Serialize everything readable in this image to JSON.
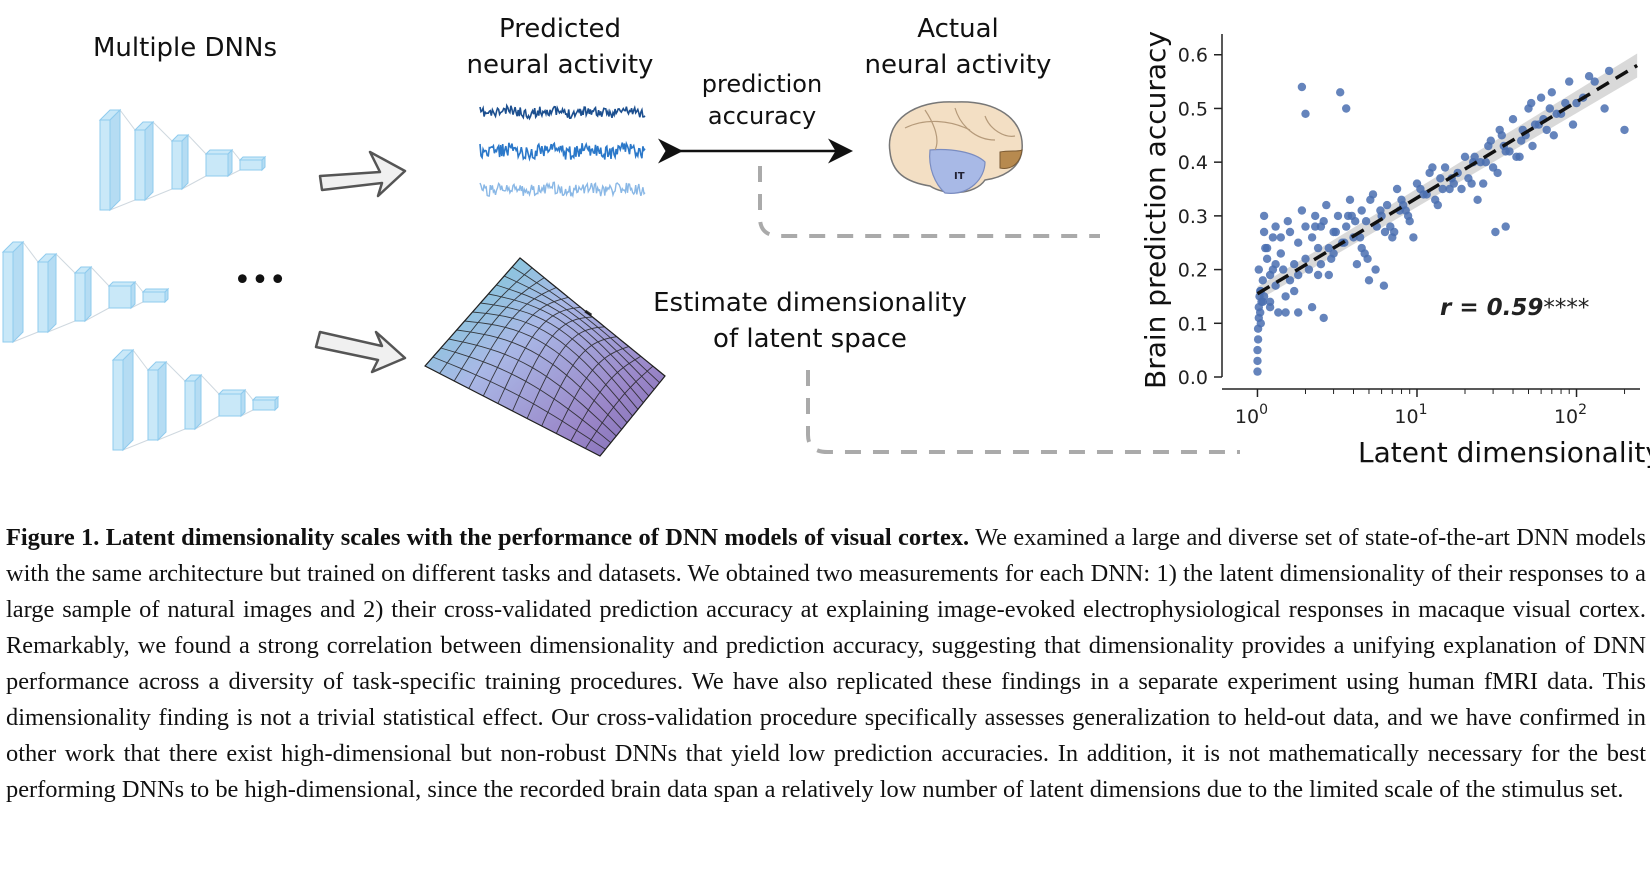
{
  "figure": {
    "dnn_label": "Multiple DNNs",
    "ellipsis": "•••",
    "predicted_label_line1": "Predicted",
    "predicted_label_line2": "neural activity",
    "accuracy_label_line1": "prediction",
    "accuracy_label_line2": "accuracy",
    "actual_label_line1": "Actual",
    "actual_label_line2": "neural activity",
    "brain_region_label": "IT",
    "dimensionality_label_line1": "Estimate dimensionality",
    "dimensionality_label_line2": "of latent space",
    "colors": {
      "dnn_fill": "#c9e8f8",
      "dnn_stroke": "#8fcbee",
      "trace_dark": "#1c4f8f",
      "trace_mid": "#2b78c9",
      "trace_light": "#8ab8e6",
      "scatter": "#4a6fb0",
      "arrow_fill": "#f0f0f0",
      "arrow_stroke": "#555555",
      "dash": "#aaaaaa"
    }
  },
  "chart_data": {
    "type": "scatter",
    "xlabel": "Latent dimensionality",
    "ylabel": "Brain prediction accuracy",
    "xscale": "log",
    "xlim": [
      0.8,
      250
    ],
    "ylim": [
      0.0,
      0.62
    ],
    "yticks": [
      "0.0",
      "0.1",
      "0.2",
      "0.3",
      "0.4",
      "0.5",
      "0.6"
    ],
    "xticks": [
      {
        "base": "10",
        "exp": "0"
      },
      {
        "base": "10",
        "exp": "1"
      },
      {
        "base": "10",
        "exp": "2"
      }
    ],
    "annotation_r": "r = 0.59",
    "annotation_sig": "****",
    "fit_line": {
      "x": [
        1.0,
        240
      ],
      "y": [
        0.155,
        0.58
      ]
    },
    "points": {
      "x": [
        1.0,
        1.0,
        1.0,
        1.01,
        1.01,
        1.02,
        1.02,
        1.03,
        1.04,
        1.05,
        1.05,
        1.06,
        1.08,
        1.1,
        1.1,
        1.12,
        1.15,
        1.2,
        1.2,
        1.25,
        1.3,
        1.3,
        1.35,
        1.4,
        1.45,
        1.5,
        1.55,
        1.6,
        1.7,
        1.8,
        1.8,
        1.9,
        2.0,
        2.0,
        2.1,
        2.2,
        2.3,
        2.4,
        2.5,
        2.6,
        2.7,
        2.8,
        3.0,
        3.0,
        3.2,
        3.4,
        3.6,
        3.8,
        4.0,
        4.2,
        4.5,
        4.8,
        5.0,
        5.3,
        5.6,
        6.0,
        6.5,
        7.0,
        7.5,
        8.0,
        8.5,
        9.0,
        10,
        11,
        12,
        13,
        14,
        15,
        16,
        18,
        20,
        22,
        25,
        28,
        30,
        33,
        36,
        40,
        45,
        50,
        55,
        60,
        70,
        80,
        90,
        100,
        120,
        150,
        1.9,
        2.0,
        3.3,
        3.6,
        2.2,
        2.6,
        1.1,
        1.2,
        1.5,
        1.7,
        4.5,
        5.5,
        6.2,
        2.4,
        2.9,
        3.1,
        3.5,
        4.1,
        4.7,
        5.9,
        7.2,
        8.8,
        9.5,
        11.5,
        13.5,
        17,
        19,
        21,
        24,
        27,
        32,
        38,
        42,
        48,
        53,
        58,
        65,
        75,
        85,
        95,
        110,
        130,
        160,
        200,
        1.3,
        1.6,
        2.3,
        2.8,
        3.9,
        4.4,
        5.1,
        6.8,
        7.8,
        12.5,
        14.5,
        22.5,
        26,
        29,
        35,
        44,
        52,
        62,
        72,
        31,
        36,
        1.02,
        1.04,
        1.08,
        1.15,
        1.25,
        1.4,
        1.8,
        2.5,
        3.7,
        4.9,
        6.3,
        8.2,
        10.5,
        16.5,
        23,
        34,
        46,
        68
      ],
      "y": [
        0.01,
        0.03,
        0.05,
        0.07,
        0.09,
        0.11,
        0.13,
        0.15,
        0.12,
        0.1,
        0.16,
        0.14,
        0.18,
        0.27,
        0.3,
        0.24,
        0.22,
        0.19,
        0.13,
        0.26,
        0.28,
        0.17,
        0.12,
        0.23,
        0.2,
        0.15,
        0.29,
        0.27,
        0.21,
        0.25,
        0.12,
        0.31,
        0.28,
        0.22,
        0.2,
        0.26,
        0.3,
        0.24,
        0.21,
        0.29,
        0.32,
        0.19,
        0.27,
        0.23,
        0.3,
        0.25,
        0.28,
        0.33,
        0.26,
        0.21,
        0.31,
        0.29,
        0.18,
        0.34,
        0.28,
        0.3,
        0.32,
        0.26,
        0.35,
        0.33,
        0.31,
        0.29,
        0.36,
        0.34,
        0.38,
        0.33,
        0.37,
        0.39,
        0.35,
        0.38,
        0.41,
        0.36,
        0.4,
        0.43,
        0.39,
        0.46,
        0.42,
        0.48,
        0.44,
        0.5,
        0.47,
        0.52,
        0.53,
        0.49,
        0.55,
        0.51,
        0.56,
        0.5,
        0.54,
        0.49,
        0.53,
        0.5,
        0.13,
        0.11,
        0.15,
        0.14,
        0.12,
        0.16,
        0.24,
        0.2,
        0.17,
        0.19,
        0.22,
        0.27,
        0.25,
        0.29,
        0.23,
        0.31,
        0.27,
        0.3,
        0.26,
        0.34,
        0.32,
        0.36,
        0.35,
        0.37,
        0.33,
        0.4,
        0.38,
        0.42,
        0.41,
        0.45,
        0.43,
        0.47,
        0.46,
        0.49,
        0.51,
        0.47,
        0.52,
        0.55,
        0.57,
        0.46,
        0.21,
        0.18,
        0.28,
        0.24,
        0.3,
        0.26,
        0.33,
        0.28,
        0.31,
        0.39,
        0.35,
        0.4,
        0.36,
        0.44,
        0.43,
        0.41,
        0.51,
        0.48,
        0.45,
        0.27,
        0.28,
        0.2,
        0.16,
        0.14,
        0.24,
        0.2,
        0.26,
        0.19,
        0.28,
        0.3,
        0.22,
        0.27,
        0.32,
        0.35,
        0.37,
        0.41,
        0.45,
        0.46,
        0.5
      ]
    }
  },
  "caption": {
    "title": "Figure 1. Latent dimensionality scales with the performance of DNN models of visual cortex.",
    "body": "We examined a large and diverse set of state-of-the-art DNN models with the same architecture but trained on different tasks and datasets. We obtained two measurements for each DNN: 1) the latent dimensionality of their responses to a large sample of natural images and 2) their cross-validated prediction accuracy at explaining image-evoked electrophysiological responses in macaque visual cortex. Remarkably, we found a strong correlation between dimensionality and prediction accuracy, suggesting that dimensionality provides a unifying explanation of DNN performance across a diversity of task-specific training procedures. We have also replicated these findings in a separate experiment using human fMRI data. This dimensionality finding is not a trivial statistical effect. Our cross-validation procedure specifically assesses generalization to held-out data, and we have confirmed in other work that there exist high-dimensional but non-robust DNNs that yield low prediction accuracies. In addition, it is not mathematically necessary for the best performing DNNs to be high-dimensional, since the recorded brain data span a relatively low number of latent dimensions due to the limited scale of the stimulus set."
  }
}
